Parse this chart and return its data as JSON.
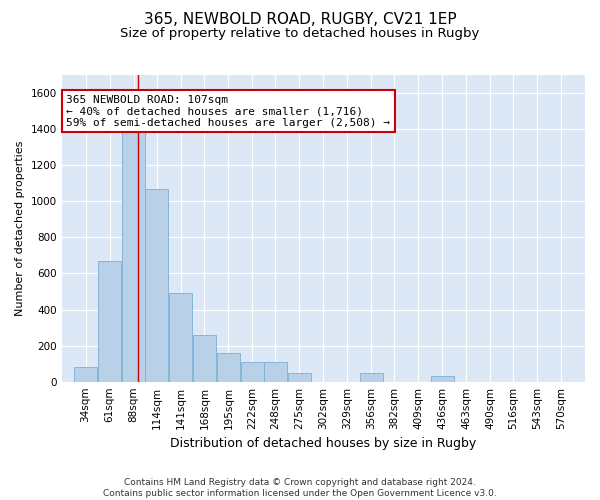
{
  "title": "365, NEWBOLD ROAD, RUGBY, CV21 1EP",
  "subtitle": "Size of property relative to detached houses in Rugby",
  "xlabel": "Distribution of detached houses by size in Rugby",
  "ylabel": "Number of detached properties",
  "bar_color": "#b8d0e8",
  "bar_edge_color": "#7aafd4",
  "background_color": "#dce8f5",
  "grid_color": "#ffffff",
  "annotation_box_color": "#cc0000",
  "property_line_color": "#cc0000",
  "property_sqm": 107,
  "annotation_line1": "365 NEWBOLD ROAD: 107sqm",
  "annotation_line2": "← 40% of detached houses are smaller (1,716)",
  "annotation_line3": "59% of semi-detached houses are larger (2,508) →",
  "categories": [
    "34sqm",
    "61sqm",
    "88sqm",
    "114sqm",
    "141sqm",
    "168sqm",
    "195sqm",
    "222sqm",
    "248sqm",
    "275sqm",
    "302sqm",
    "329sqm",
    "356sqm",
    "382sqm",
    "409sqm",
    "436sqm",
    "463sqm",
    "490sqm",
    "516sqm",
    "543sqm",
    "570sqm"
  ],
  "bin_edges": [
    34,
    61,
    88,
    114,
    141,
    168,
    195,
    222,
    248,
    275,
    302,
    329,
    356,
    382,
    409,
    436,
    463,
    490,
    516,
    543,
    570
  ],
  "bin_width": 27,
  "bar_heights": [
    80,
    670,
    1430,
    1070,
    490,
    260,
    160,
    110,
    110,
    50,
    0,
    0,
    50,
    0,
    0,
    30,
    0,
    0,
    0,
    0,
    0
  ],
  "ylim": [
    0,
    1700
  ],
  "yticks": [
    0,
    200,
    400,
    600,
    800,
    1000,
    1200,
    1400,
    1600
  ],
  "footnote": "Contains HM Land Registry data © Crown copyright and database right 2024.\nContains public sector information licensed under the Open Government Licence v3.0.",
  "title_fontsize": 11,
  "subtitle_fontsize": 9.5,
  "xlabel_fontsize": 9,
  "ylabel_fontsize": 8,
  "tick_fontsize": 7.5,
  "annotation_fontsize": 8,
  "footnote_fontsize": 6.5
}
